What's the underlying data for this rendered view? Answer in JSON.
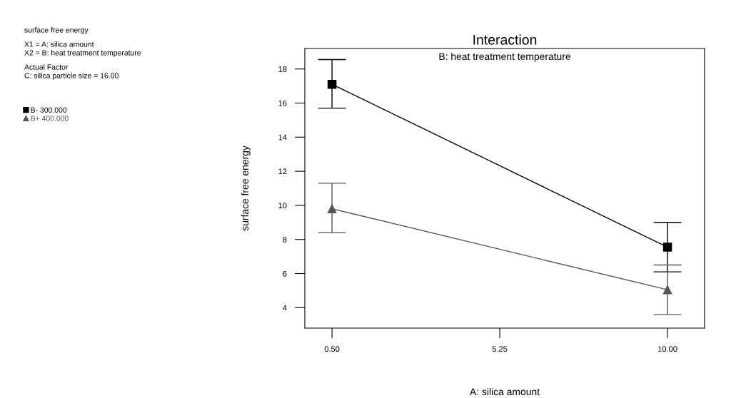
{
  "chart_data": {
    "type": "line",
    "title": "Interaction",
    "subtitle": "B: heat treatment temperature",
    "xlabel": "A: silica amount",
    "ylabel": "surface free energy",
    "annotations": [
      "surface free energy",
      "X1 = A: silica amount",
      "X2 = B: heat treatment temperature",
      "Actual Factor",
      "C: silica particle size = 16.00"
    ],
    "x": [
      0.5,
      10.0
    ],
    "series": [
      {
        "name": "B- 300.000",
        "color": "#000000",
        "marker": "square",
        "values": [
          17.1,
          7.55
        ],
        "errors": [
          [
            15.7,
            18.55
          ],
          [
            6.1,
            9.0
          ]
        ]
      },
      {
        "name": "B+ 400.000",
        "color": "#555555",
        "marker": "triangle",
        "values": [
          9.8,
          5.05
        ],
        "errors": [
          [
            8.4,
            11.3
          ],
          [
            3.6,
            6.5
          ]
        ]
      }
    ],
    "xlim": [
      -0.27,
      11.05
    ],
    "xticks": [
      {
        "value": 0.5,
        "label": "0.50"
      },
      {
        "value": 5.25,
        "label": "5.25"
      },
      {
        "value": 10.0,
        "label": "10.00"
      }
    ],
    "ylim": [
      2.8,
      19.2
    ],
    "yticks": [
      4,
      6,
      8,
      10,
      12,
      14,
      16,
      18
    ],
    "grid": false,
    "legend": "left",
    "line_style": "solid"
  }
}
